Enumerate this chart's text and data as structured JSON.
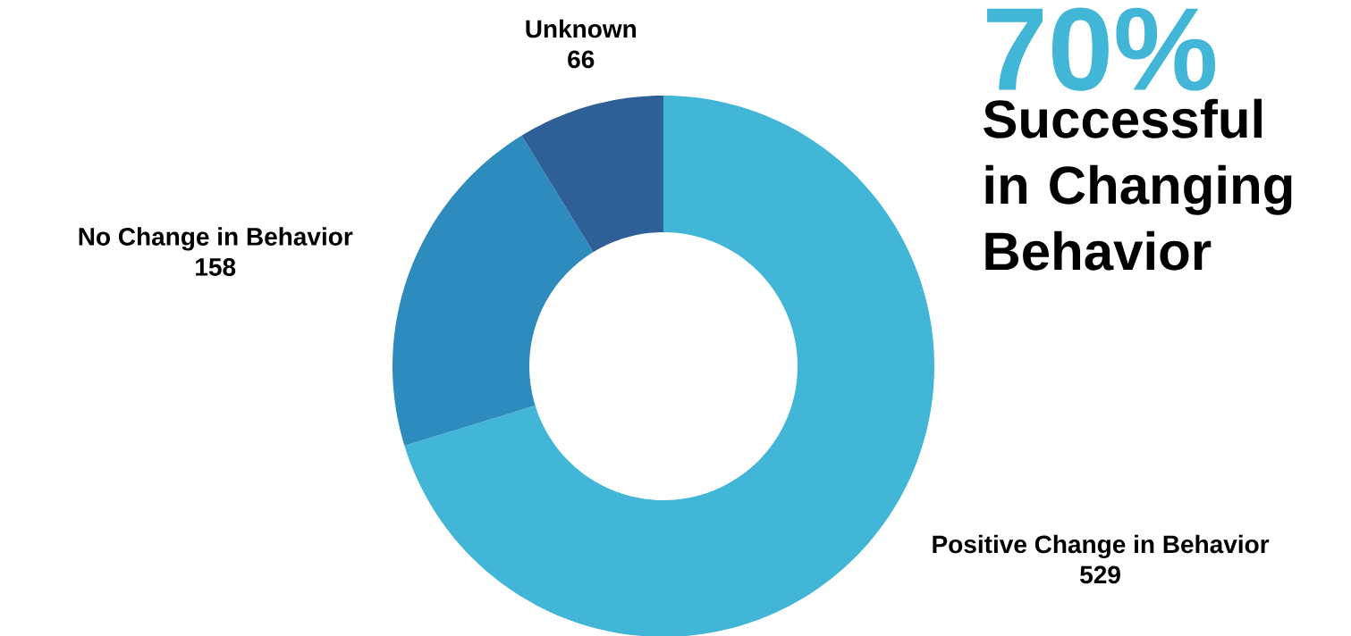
{
  "chart_data": {
    "type": "donut",
    "title": "70%",
    "subtitle": "Successful in Changing Behavior",
    "categories": [
      "Positive Change in Behavior",
      "No Change in Behavior",
      "Unknown"
    ],
    "values": [
      529,
      158,
      66
    ],
    "colors": [
      "#42b6d6",
      "#2e8bbd",
      "#2e5f96"
    ],
    "data_labels": true
  }
}
